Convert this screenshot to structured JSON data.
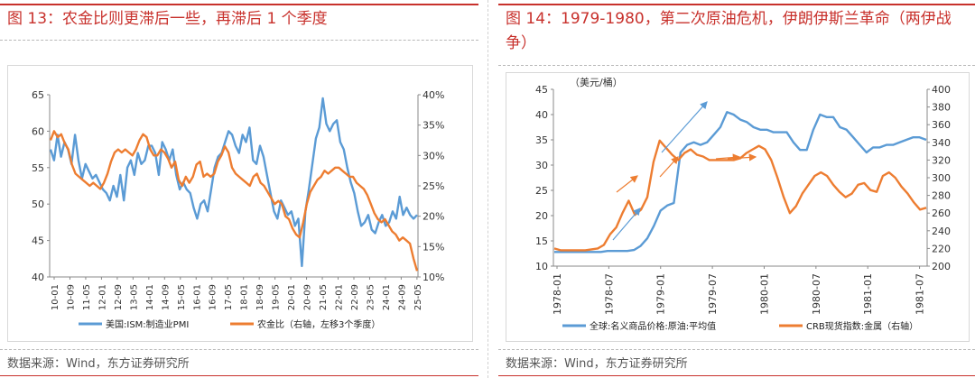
{
  "left": {
    "title": "图 13：农金比则更滞后一些，再滞后 1 个季度",
    "source": "数据来源：Wind，东方证券研究所",
    "chart_data": {
      "type": "line",
      "title": "",
      "x_ticks": [
        "10-01",
        "10-09",
        "11-05",
        "12-01",
        "12-09",
        "13-05",
        "14-01",
        "14-09",
        "15-05",
        "16-01",
        "16-09",
        "17-05",
        "18-01",
        "18-09",
        "19-05",
        "20-01",
        "20-09",
        "21-05",
        "22-01",
        "22-09",
        "23-05",
        "24-01",
        "24-09",
        "25-05"
      ],
      "y_left": {
        "ticks": [
          "65",
          "60",
          "55",
          "50",
          "45",
          "40"
        ],
        "min": 40,
        "max": 65
      },
      "y_right": {
        "ticks": [
          "40%",
          "35%",
          "30%",
          "25%",
          "20%",
          "15%",
          "10%"
        ],
        "min": 10,
        "max": 40
      },
      "series": [
        {
          "name": "美国:ISM:制造业PMI",
          "axis": "left",
          "color": "#5b9bd5",
          "values": [
            57.5,
            56,
            59.5,
            56.5,
            58.5,
            57.5,
            55.5,
            59.5,
            56,
            53.5,
            55.5,
            54.5,
            53.5,
            54,
            53,
            52,
            51.5,
            50.5,
            52.5,
            51,
            54,
            50.5,
            55,
            56,
            54,
            57,
            55.5,
            56,
            58,
            58,
            57,
            54,
            58.5,
            57.5,
            56,
            57.5,
            54,
            52,
            53,
            52,
            51.5,
            49.5,
            48,
            50,
            50.5,
            49,
            52,
            55,
            56.5,
            57,
            58.5,
            60,
            59.5,
            58,
            57,
            59.5,
            58.5,
            60.5,
            56,
            55.5,
            58,
            56.5,
            54,
            51.5,
            49,
            48,
            50.5,
            49.5,
            48.5,
            49,
            47,
            48,
            41.5,
            49,
            52,
            55.5,
            59,
            60.5,
            64.5,
            61,
            60,
            61,
            61.5,
            58.5,
            57.5,
            55,
            53,
            51.5,
            49,
            47,
            47.5,
            48.5,
            46.5,
            46,
            47.5,
            48.5,
            47,
            47.5,
            49,
            48,
            51,
            48.5,
            49.5,
            48.5,
            48,
            48.5
          ]
        },
        {
          "name": "农金比（右轴，左移3个季度）",
          "axis": "right",
          "color": "#ed7d31",
          "values": [
            32.5,
            34,
            33,
            33.5,
            32,
            31,
            28.5,
            27,
            26.5,
            26,
            25.5,
            25,
            25.5,
            25,
            24.5,
            25.5,
            27,
            29,
            30.5,
            31,
            30.5,
            31,
            30.5,
            30,
            31,
            32.5,
            33.5,
            33,
            31,
            30,
            30,
            31,
            30.5,
            29.5,
            28,
            29,
            26,
            25,
            26.5,
            25.5,
            26.5,
            28.5,
            29,
            26.5,
            27,
            26.5,
            27,
            29,
            30,
            31.5,
            30.5,
            28,
            27,
            26.5,
            26,
            25.5,
            25,
            26.5,
            27,
            25.5,
            25,
            24,
            23,
            22,
            22.5,
            22,
            20,
            19.5,
            18,
            17,
            16.5,
            19,
            22,
            24,
            25,
            26,
            26.5,
            27.5,
            27,
            27.5,
            28,
            28,
            27.5,
            27,
            26.5,
            26.5,
            25.5,
            25,
            24.5,
            23.5,
            22,
            20.5,
            19.5,
            19,
            19.5,
            18.5,
            17.5,
            17,
            16,
            16.5,
            16,
            15.5,
            13,
            11
          ]
        }
      ]
    }
  },
  "right": {
    "title": "图 14：1979-1980，第二次原油危机，伊朗伊斯兰革命（两伊战争）",
    "source": "数据来源：Wind，东方证券研究所",
    "chart_data": {
      "type": "line",
      "title": "",
      "ylabel": "（美元/桶）",
      "x_ticks": [
        "1978-01",
        "1978-07",
        "1979-01",
        "1979-07",
        "1980-01",
        "1980-07",
        "1981-01",
        "1981-07"
      ],
      "y_left": {
        "ticks": [
          "45",
          "40",
          "35",
          "30",
          "25",
          "20",
          "15",
          "10"
        ],
        "min": 10,
        "max": 45
      },
      "y_right": {
        "ticks": [
          "400",
          "380",
          "360",
          "340",
          "320",
          "300",
          "280",
          "260",
          "240",
          "220",
          "200"
        ],
        "min": 200,
        "max": 400
      },
      "series": [
        {
          "name": "全球:名义商品价格:原油:平均值",
          "axis": "left",
          "color": "#5b9bd5",
          "values": [
            12.8,
            12.8,
            12.8,
            12.8,
            12.8,
            12.8,
            12.8,
            12.8,
            13,
            13,
            13,
            13,
            13.2,
            14,
            15.5,
            18,
            21,
            22,
            22.5,
            32.5,
            34,
            34.5,
            34,
            34.5,
            36,
            37.5,
            40.5,
            40,
            39,
            38.5,
            37.5,
            37,
            37,
            36.5,
            36.5,
            36.5,
            34.5,
            33,
            33,
            37,
            40,
            39.5,
            39.5,
            37.5,
            37,
            35.5,
            34,
            32.5,
            33.5,
            33.5,
            34,
            34,
            34.5,
            35,
            35.5,
            35.5,
            35
          ]
        },
        {
          "name": "CRB现货指数:金属（右轴）",
          "axis": "right",
          "color": "#ed7d31",
          "values": [
            220,
            218,
            218,
            218,
            218,
            218,
            219,
            220,
            224,
            236,
            244,
            260,
            274,
            258,
            264,
            278,
            318,
            342,
            334,
            326,
            320,
            328,
            332,
            326,
            324,
            320,
            320,
            320,
            320,
            320,
            322,
            328,
            332,
            336,
            332,
            320,
            300,
            278,
            260,
            268,
            282,
            292,
            302,
            306,
            302,
            292,
            284,
            278,
            282,
            292,
            294,
            286,
            284,
            302,
            306,
            300,
            290,
            282,
            272,
            264,
            266
          ]
        }
      ],
      "annotations": [
        "arrow",
        "arrow",
        "arrow",
        "arrow",
        "arrow",
        "arrow"
      ]
    }
  }
}
